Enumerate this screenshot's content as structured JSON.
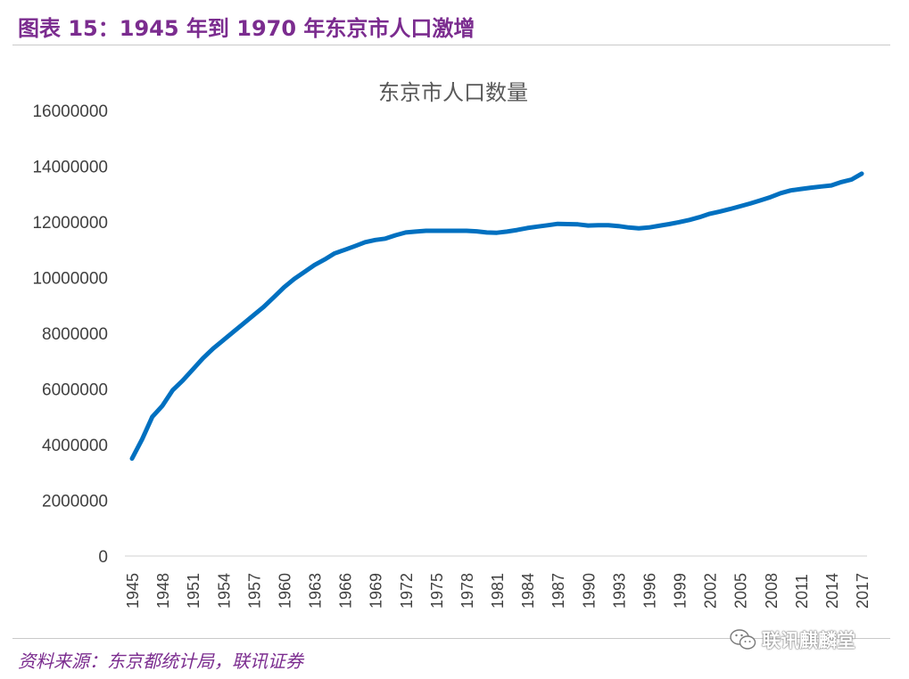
{
  "figure": {
    "title": "图表 15：1945 年到 1970 年东京市人口激增",
    "source": "资料来源：东京都统计局，联讯证券",
    "watermark": "联讯麒麟堂",
    "accent_color": "#7b2c8f",
    "watermark_icon": "wechat-icon"
  },
  "chart_data": {
    "type": "line",
    "title": "东京市人口数量",
    "xlabel": "",
    "ylabel": "",
    "ylim": [
      0,
      16000000
    ],
    "yticks": [
      0,
      2000000,
      4000000,
      6000000,
      8000000,
      10000000,
      12000000,
      14000000,
      16000000
    ],
    "xticks": [
      "1945",
      "1948",
      "1951",
      "1954",
      "1957",
      "1960",
      "1963",
      "1966",
      "1969",
      "1972",
      "1975",
      "1978",
      "1981",
      "1984",
      "1987",
      "1990",
      "1993",
      "1996",
      "1999",
      "2002",
      "2005",
      "2008",
      "2011",
      "2014",
      "2017"
    ],
    "grid": false,
    "legend": "none",
    "line_color": "#0070c0",
    "series": [
      {
        "x": [
          1945,
          1946,
          1947,
          1948,
          1949,
          1950,
          1951,
          1952,
          1953,
          1954,
          1955,
          1956,
          1957,
          1958,
          1959,
          1960,
          1961,
          1962,
          1963,
          1964,
          1965,
          1966,
          1967,
          1968,
          1969,
          1970,
          1971,
          1972,
          1973,
          1974,
          1975,
          1976,
          1977,
          1978,
          1979,
          1980,
          1981,
          1982,
          1983,
          1984,
          1985,
          1986,
          1987,
          1988,
          1989,
          1990,
          1991,
          1992,
          1993,
          1994,
          1995,
          1996,
          1997,
          1998,
          1999,
          2000,
          2001,
          2002,
          2003,
          2004,
          2005,
          2006,
          2007,
          2008,
          2009,
          2010,
          2011,
          2012,
          2013,
          2014,
          2015,
          2016,
          2017
        ],
        "values": [
          3500000,
          4200000,
          5000000,
          5400000,
          5950000,
          6300000,
          6700000,
          7100000,
          7450000,
          7750000,
          8050000,
          8350000,
          8650000,
          8950000,
          9300000,
          9650000,
          9950000,
          10200000,
          10450000,
          10650000,
          10870000,
          11000000,
          11130000,
          11270000,
          11350000,
          11400000,
          11520000,
          11620000,
          11650000,
          11680000,
          11680000,
          11680000,
          11680000,
          11680000,
          11660000,
          11620000,
          11610000,
          11650000,
          11710000,
          11780000,
          11830000,
          11880000,
          11930000,
          11920000,
          11910000,
          11870000,
          11880000,
          11880000,
          11850000,
          11800000,
          11770000,
          11800000,
          11860000,
          11920000,
          11990000,
          12070000,
          12170000,
          12290000,
          12370000,
          12460000,
          12560000,
          12660000,
          12770000,
          12890000,
          13030000,
          13130000,
          13180000,
          13230000,
          13270000,
          13310000,
          13430000,
          13520000,
          13730000
        ]
      }
    ]
  }
}
